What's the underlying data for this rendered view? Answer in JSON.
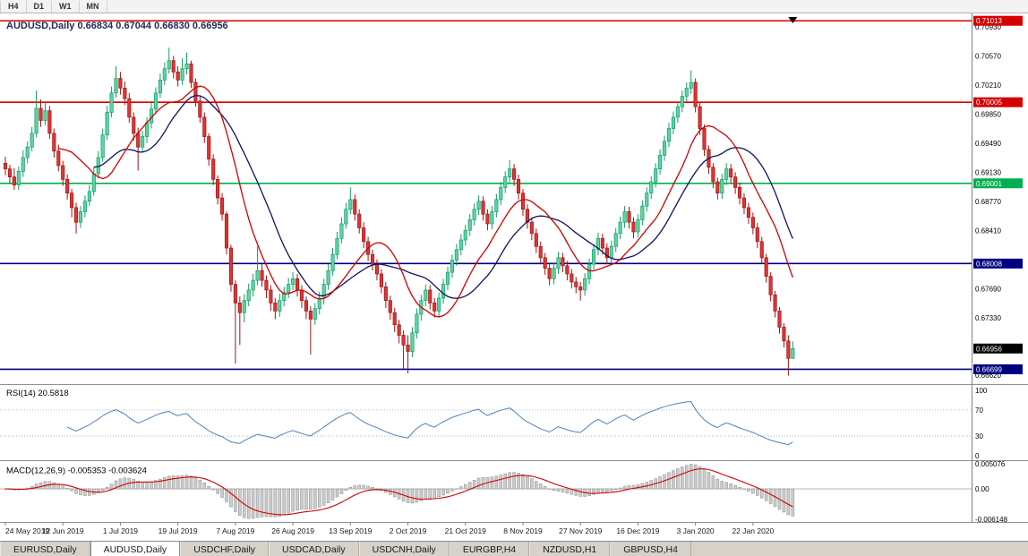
{
  "toolbar": {
    "timeframes": [
      "H4",
      "D1",
      "W1",
      "MN"
    ]
  },
  "chart": {
    "title": "AUDUSD,Daily",
    "ohlc_current": {
      "open": "0.66834",
      "high": "0.67044",
      "low": "0.66830",
      "close": "0.66956"
    }
  },
  "price_axis": {
    "ticks": [
      "0.70930",
      "0.70570",
      "0.70210",
      "0.69850",
      "0.69490",
      "0.69130",
      "0.68770",
      "0.68410",
      "0.67690",
      "0.67330",
      "0.66620"
    ],
    "badges": [
      {
        "label": "0.71013",
        "value": 0.71013,
        "color": "#d60000"
      },
      {
        "label": "0.70005",
        "value": 0.70005,
        "color": "#d60000"
      },
      {
        "label": "0.69001",
        "value": 0.69001,
        "color": "#00b050"
      },
      {
        "label": "0.68008",
        "value": 0.68008,
        "color": "#000080"
      },
      {
        "label": "0.66956",
        "value": 0.66956,
        "color": "#000000"
      },
      {
        "label": "0.66699",
        "value": 0.66699,
        "color": "#000080"
      }
    ]
  },
  "levels": [
    {
      "value": 0.71013,
      "color": "#d60000"
    },
    {
      "value": 0.70005,
      "color": "#d60000"
    },
    {
      "value": 0.69001,
      "color": "#00b050"
    },
    {
      "value": 0.68008,
      "color": "#000080"
    },
    {
      "value": 0.66699,
      "color": "#000080"
    }
  ],
  "rsi": {
    "label": "RSI(14) 20.5818",
    "axis": [
      {
        "text": "100",
        "value": 100
      },
      {
        "text": "70",
        "value": 70
      },
      {
        "text": "30",
        "value": 30
      },
      {
        "text": "0",
        "value": 0
      }
    ],
    "dashed_levels": [
      70,
      30
    ]
  },
  "macd": {
    "label": "MACD(12,26,9) -0.005353 -0.003624",
    "axis": [
      {
        "text": "0.005076",
        "value": 0.005076
      },
      {
        "text": "0.00",
        "value": 0
      },
      {
        "text": "-0.006148",
        "value": -0.006148
      }
    ]
  },
  "dates": [
    "24 May 2019",
    "12 Jun 2019",
    "1 Jul 2019",
    "19 Jul 2019",
    "7 Aug 2019",
    "26 Aug 2019",
    "13 Sep 2019",
    "2 Oct 2019",
    "21 Oct 2019",
    "8 Nov 2019",
    "27 Nov 2019",
    "16 Dec 2019",
    "3 Jan 2020",
    "22 Jan 2020"
  ],
  "tabs": [
    {
      "label": "EURUSD,Daily",
      "active": false
    },
    {
      "label": "AUDUSD,Daily",
      "active": true
    },
    {
      "label": "USDCHF,Daily",
      "active": false
    },
    {
      "label": "USDCAD,Daily",
      "active": false
    },
    {
      "label": "USDCNH,Daily",
      "active": false
    },
    {
      "label": "EURGBP,H4",
      "active": false
    },
    {
      "label": "NZDUSD,H1",
      "active": false
    },
    {
      "label": "GBPUSD,H4",
      "active": false
    }
  ],
  "colors": {
    "bull_fill": "#5fd3a2",
    "bull_border": "#119e66",
    "bear_fill": "#e03434",
    "bear_border": "#9e1515",
    "ma_fast": "#d40000",
    "ma_slow": "#12125e",
    "rsi_line": "#4f81bd",
    "macd_hist_fill": "#cccccc",
    "macd_hist_border": "#9a9a9a",
    "macd_signal": "#d40000"
  },
  "chart_data": {
    "type": "candlestick",
    "symbol": "AUDUSD",
    "timeframe": "Daily",
    "title": "AUDUSD,Daily 0.66834 0.67044 0.66830 0.66956",
    "x_labels": [
      "24 May 2019",
      "12 Jun 2019",
      "1 Jul 2019",
      "19 Jul 2019",
      "7 Aug 2019",
      "26 Aug 2019",
      "13 Sep 2019",
      "2 Oct 2019",
      "21 Oct 2019",
      "8 Nov 2019",
      "27 Nov 2019",
      "16 Dec 2019",
      "3 Jan 2020",
      "22 Jan 2020"
    ],
    "y_range": [
      0.6656,
      0.7106
    ],
    "horizontal_lines": [
      0.71013,
      0.70005,
      0.69001,
      0.68008,
      0.66699
    ],
    "rsi_value": 20.5818,
    "macd_values": [
      -0.005353,
      -0.003624
    ],
    "candles": [
      [
        0.6925,
        0.6933,
        0.691,
        0.6918
      ],
      [
        0.6918,
        0.6923,
        0.69,
        0.6908
      ],
      [
        0.6908,
        0.6919,
        0.6892,
        0.6898
      ],
      [
        0.6898,
        0.6921,
        0.6892,
        0.6915
      ],
      [
        0.6915,
        0.6941,
        0.6908,
        0.6932
      ],
      [
        0.6932,
        0.6952,
        0.6925,
        0.6945
      ],
      [
        0.6945,
        0.697,
        0.694,
        0.6962
      ],
      [
        0.6962,
        0.7015,
        0.6957,
        0.6993
      ],
      [
        0.6993,
        0.7004,
        0.697,
        0.6978
      ],
      [
        0.6978,
        0.7,
        0.6972,
        0.699
      ],
      [
        0.699,
        0.6996,
        0.6955,
        0.6962
      ],
      [
        0.6962,
        0.6968,
        0.6932,
        0.694
      ],
      [
        0.694,
        0.6948,
        0.6915,
        0.6922
      ],
      [
        0.6922,
        0.6928,
        0.6897,
        0.6905
      ],
      [
        0.6905,
        0.6911,
        0.688,
        0.6888
      ],
      [
        0.6888,
        0.6893,
        0.6858,
        0.687
      ],
      [
        0.687,
        0.6876,
        0.6838,
        0.6852
      ],
      [
        0.6852,
        0.6872,
        0.6845,
        0.6865
      ],
      [
        0.6865,
        0.6885,
        0.6858,
        0.6878
      ],
      [
        0.6878,
        0.6898,
        0.6872,
        0.689
      ],
      [
        0.689,
        0.692,
        0.6885,
        0.6912
      ],
      [
        0.6912,
        0.694,
        0.6906,
        0.6932
      ],
      [
        0.6932,
        0.6968,
        0.6927,
        0.696
      ],
      [
        0.696,
        0.6996,
        0.6954,
        0.6988
      ],
      [
        0.6988,
        0.702,
        0.6982,
        0.7012
      ],
      [
        0.7012,
        0.7045,
        0.7006,
        0.703
      ],
      [
        0.703,
        0.7038,
        0.701,
        0.7018
      ],
      [
        0.7018,
        0.7026,
        0.6997,
        0.7005
      ],
      [
        0.7005,
        0.7012,
        0.6975,
        0.6982
      ],
      [
        0.6982,
        0.6988,
        0.6953,
        0.6962
      ],
      [
        0.6962,
        0.6969,
        0.6916,
        0.6945
      ],
      [
        0.6945,
        0.6965,
        0.6938,
        0.6958
      ],
      [
        0.6958,
        0.6982,
        0.695,
        0.6975
      ],
      [
        0.6975,
        0.7,
        0.6968,
        0.6992
      ],
      [
        0.6992,
        0.7019,
        0.6986,
        0.7012
      ],
      [
        0.7012,
        0.7036,
        0.7006,
        0.7028
      ],
      [
        0.7028,
        0.705,
        0.7022,
        0.7042
      ],
      [
        0.7042,
        0.7068,
        0.7036,
        0.7052
      ],
      [
        0.7052,
        0.7058,
        0.703,
        0.7038
      ],
      [
        0.7038,
        0.7045,
        0.702,
        0.7028
      ],
      [
        0.7028,
        0.7055,
        0.7022,
        0.7042
      ],
      [
        0.7042,
        0.7062,
        0.7035,
        0.7048
      ],
      [
        0.7048,
        0.7052,
        0.7018,
        0.7025
      ],
      [
        0.7025,
        0.703,
        0.6995,
        0.7002
      ],
      [
        0.7002,
        0.7008,
        0.6975,
        0.6982
      ],
      [
        0.6982,
        0.6988,
        0.695,
        0.6958
      ],
      [
        0.6958,
        0.6962,
        0.6922,
        0.693
      ],
      [
        0.693,
        0.6936,
        0.6898,
        0.6905
      ],
      [
        0.6905,
        0.691,
        0.6874,
        0.6882
      ],
      [
        0.6882,
        0.6888,
        0.6854,
        0.6862
      ],
      [
        0.6862,
        0.6865,
        0.6812,
        0.682
      ],
      [
        0.682,
        0.6824,
        0.6766,
        0.6775
      ],
      [
        0.6775,
        0.678,
        0.6677,
        0.6752
      ],
      [
        0.6752,
        0.676,
        0.67,
        0.674
      ],
      [
        0.674,
        0.6763,
        0.6728,
        0.6755
      ],
      [
        0.6755,
        0.6776,
        0.6748,
        0.6768
      ],
      [
        0.6768,
        0.6788,
        0.676,
        0.678
      ],
      [
        0.678,
        0.6822,
        0.6774,
        0.6792
      ],
      [
        0.6792,
        0.68,
        0.6772,
        0.678
      ],
      [
        0.678,
        0.6786,
        0.6758,
        0.6768
      ],
      [
        0.6768,
        0.6774,
        0.6742,
        0.6752
      ],
      [
        0.6752,
        0.6758,
        0.6732,
        0.6742
      ],
      [
        0.6742,
        0.6763,
        0.6735,
        0.6755
      ],
      [
        0.6755,
        0.6772,
        0.6748,
        0.6765
      ],
      [
        0.6765,
        0.6783,
        0.6758,
        0.6775
      ],
      [
        0.6775,
        0.679,
        0.6768,
        0.6782
      ],
      [
        0.6782,
        0.6788,
        0.676,
        0.6768
      ],
      [
        0.6768,
        0.6774,
        0.6746,
        0.6755
      ],
      [
        0.6755,
        0.676,
        0.6732,
        0.6742
      ],
      [
        0.6742,
        0.6748,
        0.6688,
        0.6732
      ],
      [
        0.6732,
        0.6752,
        0.6725,
        0.6745
      ],
      [
        0.6745,
        0.6766,
        0.6738,
        0.6758
      ],
      [
        0.6758,
        0.6782,
        0.675,
        0.6775
      ],
      [
        0.6775,
        0.68,
        0.6768,
        0.6792
      ],
      [
        0.6792,
        0.682,
        0.6786,
        0.6812
      ],
      [
        0.6812,
        0.684,
        0.6806,
        0.6832
      ],
      [
        0.6832,
        0.6858,
        0.6826,
        0.685
      ],
      [
        0.685,
        0.6876,
        0.6844,
        0.6868
      ],
      [
        0.6868,
        0.6895,
        0.6862,
        0.688
      ],
      [
        0.688,
        0.6886,
        0.6854,
        0.6862
      ],
      [
        0.6862,
        0.6868,
        0.6838,
        0.6845
      ],
      [
        0.6845,
        0.6852,
        0.682,
        0.6828
      ],
      [
        0.6828,
        0.6834,
        0.6804,
        0.6812
      ],
      [
        0.6812,
        0.6818,
        0.6792,
        0.68
      ],
      [
        0.68,
        0.6806,
        0.678,
        0.6788
      ],
      [
        0.6788,
        0.6794,
        0.6764,
        0.6772
      ],
      [
        0.6772,
        0.6778,
        0.6746,
        0.6755
      ],
      [
        0.6755,
        0.6761,
        0.6731,
        0.674
      ],
      [
        0.674,
        0.6746,
        0.6716,
        0.6725
      ],
      [
        0.6725,
        0.6731,
        0.6702,
        0.6712
      ],
      [
        0.6712,
        0.6718,
        0.6671,
        0.67
      ],
      [
        0.67,
        0.6712,
        0.6665,
        0.6692
      ],
      [
        0.6692,
        0.6722,
        0.6685,
        0.6715
      ],
      [
        0.6715,
        0.6745,
        0.6708,
        0.6738
      ],
      [
        0.6738,
        0.6762,
        0.673,
        0.6755
      ],
      [
        0.6755,
        0.6775,
        0.6748,
        0.6768
      ],
      [
        0.6768,
        0.6774,
        0.6744,
        0.6752
      ],
      [
        0.6752,
        0.6758,
        0.6734,
        0.6742
      ],
      [
        0.6742,
        0.6765,
        0.6735,
        0.6758
      ],
      [
        0.6758,
        0.6782,
        0.6751,
        0.6775
      ],
      [
        0.6775,
        0.6797,
        0.6768,
        0.679
      ],
      [
        0.679,
        0.6812,
        0.6783,
        0.6805
      ],
      [
        0.6805,
        0.6825,
        0.6798,
        0.6818
      ],
      [
        0.6818,
        0.6837,
        0.6811,
        0.683
      ],
      [
        0.683,
        0.6849,
        0.6823,
        0.6842
      ],
      [
        0.6842,
        0.6862,
        0.6835,
        0.6855
      ],
      [
        0.6855,
        0.6875,
        0.6848,
        0.6868
      ],
      [
        0.6868,
        0.6885,
        0.6861,
        0.6878
      ],
      [
        0.6878,
        0.6884,
        0.6854,
        0.6862
      ],
      [
        0.6862,
        0.6868,
        0.6842,
        0.685
      ],
      [
        0.685,
        0.6872,
        0.6843,
        0.6865
      ],
      [
        0.6865,
        0.6887,
        0.6858,
        0.688
      ],
      [
        0.688,
        0.6902,
        0.6873,
        0.6895
      ],
      [
        0.6895,
        0.6915,
        0.6888,
        0.6908
      ],
      [
        0.6908,
        0.6929,
        0.6901,
        0.6918
      ],
      [
        0.6918,
        0.6924,
        0.6897,
        0.6905
      ],
      [
        0.6905,
        0.6911,
        0.688,
        0.6888
      ],
      [
        0.6888,
        0.6893,
        0.686,
        0.6868
      ],
      [
        0.6868,
        0.6874,
        0.6844,
        0.6852
      ],
      [
        0.6852,
        0.6858,
        0.683,
        0.6838
      ],
      [
        0.6838,
        0.6844,
        0.6814,
        0.6822
      ],
      [
        0.6822,
        0.6828,
        0.68,
        0.6808
      ],
      [
        0.6808,
        0.6814,
        0.6787,
        0.6795
      ],
      [
        0.6795,
        0.6801,
        0.6774,
        0.6782
      ],
      [
        0.6782,
        0.6802,
        0.6775,
        0.6795
      ],
      [
        0.6795,
        0.6815,
        0.6788,
        0.6808
      ],
      [
        0.6808,
        0.6814,
        0.679,
        0.6798
      ],
      [
        0.6798,
        0.6804,
        0.678,
        0.6788
      ],
      [
        0.6788,
        0.6794,
        0.677,
        0.6778
      ],
      [
        0.6778,
        0.6784,
        0.6764,
        0.6772
      ],
      [
        0.6772,
        0.6778,
        0.6755,
        0.6768
      ],
      [
        0.6768,
        0.6789,
        0.6761,
        0.6782
      ],
      [
        0.6782,
        0.6807,
        0.6775,
        0.68
      ],
      [
        0.68,
        0.6825,
        0.6793,
        0.6818
      ],
      [
        0.6818,
        0.6839,
        0.6811,
        0.6832
      ],
      [
        0.6832,
        0.6838,
        0.6812,
        0.682
      ],
      [
        0.682,
        0.6826,
        0.68,
        0.6808
      ],
      [
        0.6808,
        0.6829,
        0.6801,
        0.6822
      ],
      [
        0.6822,
        0.6845,
        0.6815,
        0.6838
      ],
      [
        0.6838,
        0.6859,
        0.6831,
        0.6852
      ],
      [
        0.6852,
        0.6872,
        0.6845,
        0.6865
      ],
      [
        0.6865,
        0.6871,
        0.6844,
        0.6852
      ],
      [
        0.6852,
        0.6858,
        0.6832,
        0.684
      ],
      [
        0.684,
        0.6862,
        0.6833,
        0.6855
      ],
      [
        0.6855,
        0.6879,
        0.6848,
        0.6872
      ],
      [
        0.6872,
        0.6895,
        0.6865,
        0.6888
      ],
      [
        0.6888,
        0.6909,
        0.6881,
        0.6902
      ],
      [
        0.6902,
        0.6925,
        0.6895,
        0.6918
      ],
      [
        0.6918,
        0.6942,
        0.6911,
        0.6935
      ],
      [
        0.6935,
        0.6959,
        0.6928,
        0.6952
      ],
      [
        0.6952,
        0.6975,
        0.6945,
        0.6968
      ],
      [
        0.6968,
        0.6989,
        0.6961,
        0.6982
      ],
      [
        0.6982,
        0.7002,
        0.6975,
        0.6995
      ],
      [
        0.6995,
        0.7015,
        0.6988,
        0.7008
      ],
      [
        0.7008,
        0.7025,
        0.7001,
        0.7018
      ],
      [
        0.7018,
        0.704,
        0.7011,
        0.7025
      ],
      [
        0.7025,
        0.703,
        0.6988,
        0.6995
      ],
      [
        0.6995,
        0.7,
        0.696,
        0.6968
      ],
      [
        0.6968,
        0.6973,
        0.6934,
        0.6942
      ],
      [
        0.6942,
        0.6947,
        0.6912,
        0.692
      ],
      [
        0.692,
        0.6925,
        0.6894,
        0.6902
      ],
      [
        0.6902,
        0.6907,
        0.688,
        0.6888
      ],
      [
        0.6888,
        0.6912,
        0.6881,
        0.6905
      ],
      [
        0.6905,
        0.6925,
        0.6898,
        0.6918
      ],
      [
        0.6918,
        0.6924,
        0.69,
        0.6908
      ],
      [
        0.6908,
        0.6914,
        0.6887,
        0.6895
      ],
      [
        0.6895,
        0.6901,
        0.6874,
        0.6882
      ],
      [
        0.6882,
        0.6888,
        0.6862,
        0.687
      ],
      [
        0.687,
        0.6876,
        0.685,
        0.6858
      ],
      [
        0.6858,
        0.6864,
        0.6837,
        0.6845
      ],
      [
        0.6845,
        0.6851,
        0.682,
        0.6828
      ],
      [
        0.6828,
        0.6834,
        0.68,
        0.6808
      ],
      [
        0.6808,
        0.6813,
        0.6777,
        0.6785
      ],
      [
        0.6785,
        0.679,
        0.6754,
        0.6762
      ],
      [
        0.6762,
        0.6767,
        0.6734,
        0.6742
      ],
      [
        0.6742,
        0.6747,
        0.6714,
        0.6722
      ],
      [
        0.6722,
        0.6727,
        0.6697,
        0.6705
      ],
      [
        0.6705,
        0.6712,
        0.6662,
        0.66834
      ],
      [
        0.66834,
        0.67044,
        0.6683,
        0.66956
      ]
    ]
  }
}
